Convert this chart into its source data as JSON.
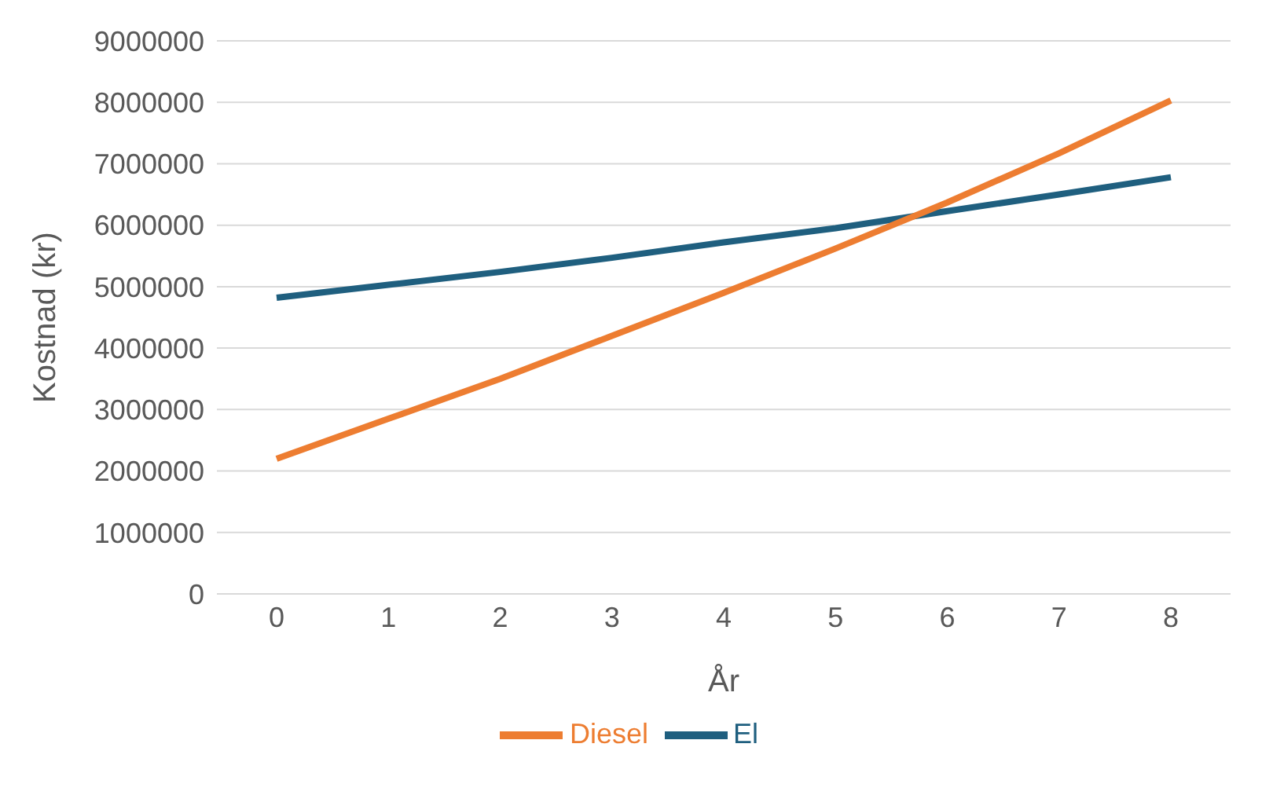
{
  "chart_data": {
    "type": "line",
    "xlabel": "År",
    "ylabel": "Kostnad (kr)",
    "categories": [
      "0",
      "1",
      "2",
      "3",
      "4",
      "5",
      "6",
      "7",
      "8"
    ],
    "series": [
      {
        "name": "El",
        "color": "#1f5f7f",
        "values": [
          4820000,
          5030000,
          5240000,
          5470000,
          5720000,
          5950000,
          6230000,
          6500000,
          6780000
        ]
      },
      {
        "name": "Diesel",
        "color": "#ed7d31",
        "values": [
          2200000,
          2850000,
          3500000,
          4200000,
          4900000,
          5620000,
          6370000,
          7170000,
          8030000
        ]
      }
    ],
    "ylim": [
      0,
      9000000
    ],
    "yticks": [
      0,
      1000000,
      2000000,
      3000000,
      4000000,
      5000000,
      6000000,
      7000000,
      8000000,
      9000000
    ],
    "grid": "y",
    "legend": "bottom",
    "marker": "none",
    "line_style": "solid"
  }
}
